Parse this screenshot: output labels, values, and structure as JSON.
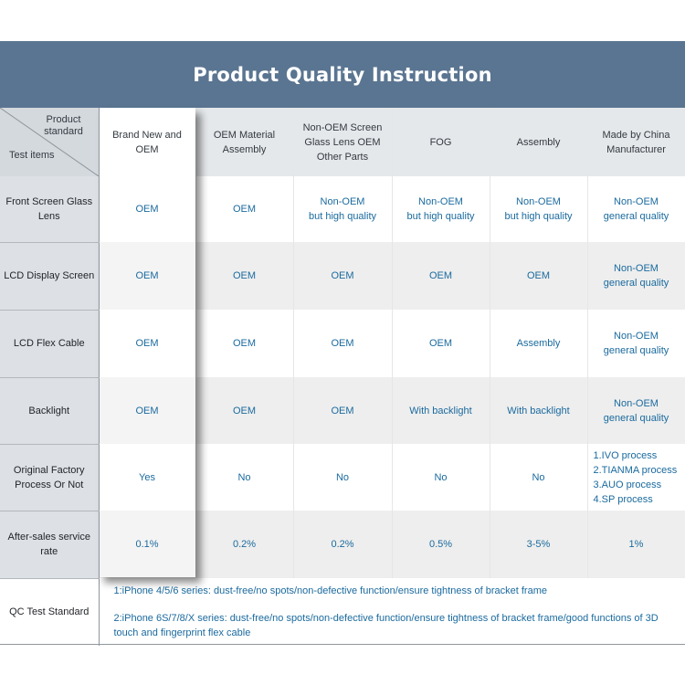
{
  "title": "Product Quality Instruction",
  "corner": {
    "top_label": "Product standard",
    "bottom_label": "Test items"
  },
  "columns": [
    "Brand New and OEM",
    "OEM Material Assembly",
    "Non-OEM Screen Glass Lens OEM Other Parts",
    "FOG",
    "Assembly",
    "Made by China Manufacturer"
  ],
  "rows": [
    {
      "label": "Front Screen Glass Lens",
      "cells": [
        "OEM",
        "OEM",
        "Non-OEM\nbut high quality",
        "Non-OEM\nbut high quality",
        "Non-OEM\nbut high quality",
        "Non-OEM\ngeneral quality"
      ]
    },
    {
      "label": "LCD Display Screen",
      "cells": [
        "OEM",
        "OEM",
        "OEM",
        "OEM",
        "OEM",
        "Non-OEM\ngeneral quality"
      ]
    },
    {
      "label": "LCD Flex Cable",
      "cells": [
        "OEM",
        "OEM",
        "OEM",
        "OEM",
        "Assembly",
        "Non-OEM\ngeneral quality"
      ]
    },
    {
      "label": "Backlight",
      "cells": [
        "OEM",
        "OEM",
        "OEM",
        "With backlight",
        "With backlight",
        "Non-OEM\ngeneral quality"
      ]
    },
    {
      "label": "Original Factory Process Or Not",
      "cells": [
        "Yes",
        "No",
        "No",
        "No",
        "No",
        "1.IVO process\n2.TIANMA process\n3.AUO process\n4.SP process"
      ]
    },
    {
      "label": "After-sales service rate",
      "cells": [
        "0.1%",
        "0.2%",
        "0.2%",
        "0.5%",
        "3-5%",
        "1%"
      ]
    }
  ],
  "qc": {
    "label": "QC Test Standard",
    "line1": "1:iPhone 4/5/6 series: dust-free/no spots/non-defective function/ensure tightness of bracket frame",
    "line2": "2:iPhone 6S/7/8/X series: dust-free/no spots/non-defective function/ensure tightness of bracket frame/good functions of 3D touch and fingerprint flex cable"
  },
  "colors": {
    "header_bg": "#5a7591",
    "value_text": "#1a6a9e",
    "row_alt_bg": "#eeeeee",
    "rowhead_bg": "#dde1e5"
  }
}
